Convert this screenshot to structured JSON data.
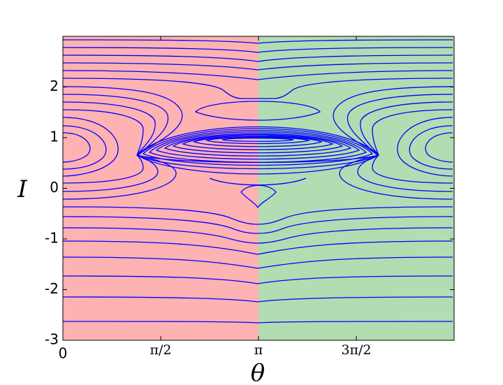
{
  "chart_data": {
    "type": "contour",
    "xlabel": "θ",
    "ylabel": "I",
    "xlim": [
      0,
      6.2832
    ],
    "ylim": [
      -3,
      3
    ],
    "xticks": [
      0,
      {
        "value": 1.5708,
        "label": "π/2"
      },
      {
        "value": 3.1416,
        "label": "π"
      },
      {
        "value": 4.7124,
        "label": "3π/2"
      }
    ],
    "yticks": [
      -3,
      -2,
      -1,
      0,
      1,
      2
    ],
    "regions": [
      {
        "xlim": [
          0,
          3.1416
        ],
        "color": "#ffb2b2"
      },
      {
        "xlim": [
          3.1416,
          6.2832
        ],
        "color": "#b2dcb2"
      }
    ],
    "line_color": "#0000ff"
  }
}
